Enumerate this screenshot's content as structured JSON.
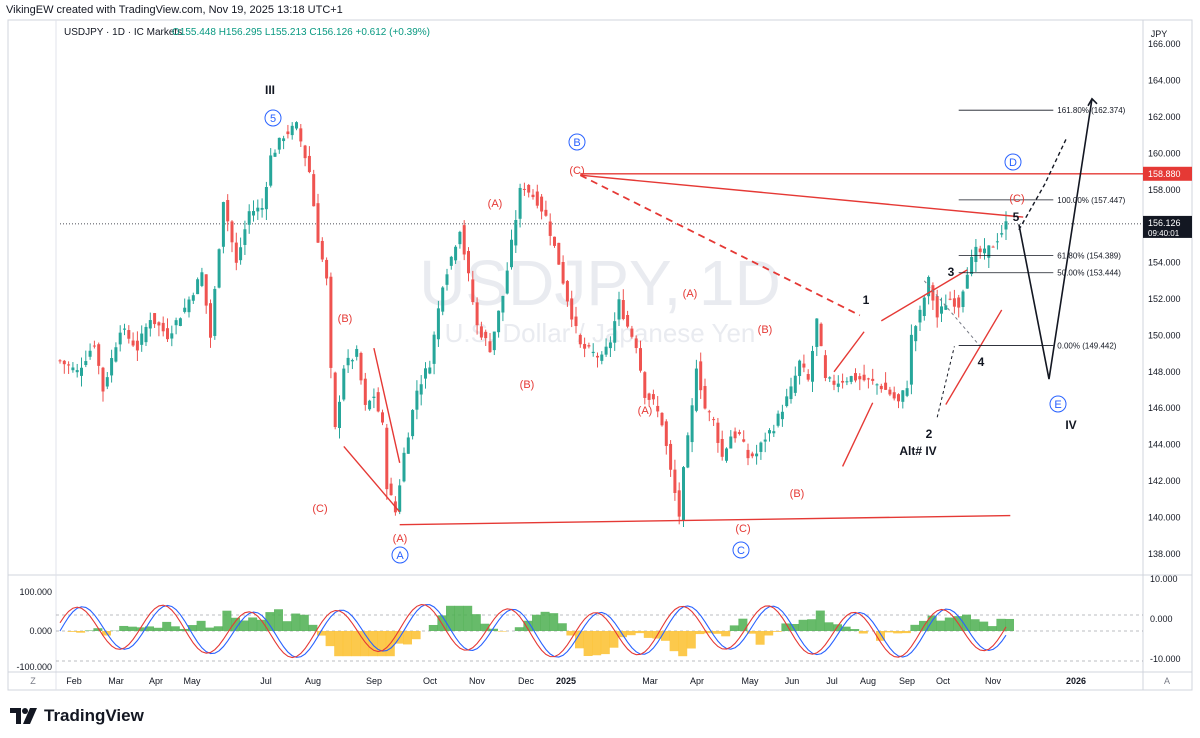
{
  "header": {
    "author_line": "VikingEW created with TradingView.com, Nov 19, 2025 13:18 UTC+1"
  },
  "brand": {
    "name": "TradingView"
  },
  "chart_data": {
    "type": "candlestick",
    "symbol_line": "USDJPY · 1D · IC Markets",
    "ohlc": {
      "O": "155.448",
      "H": "156.295",
      "L": "155.213",
      "C": "156.126",
      "change": "+0.612 (+0.39%)"
    },
    "watermark": {
      "symbol": "USDJPY, 1D",
      "name": "U.S. Dollar / Japanese Yen"
    },
    "currency": "JPY",
    "price_axis": {
      "min": 137,
      "max": 167,
      "ticks": [
        "166.000",
        "164.000",
        "162.000",
        "160.000",
        "158.000",
        "156.000",
        "154.000",
        "152.000",
        "150.000",
        "148.000",
        "146.000",
        "144.000",
        "142.000",
        "140.000",
        "138.000"
      ]
    },
    "time_axis": [
      "Feb",
      "Mar",
      "Apr",
      "May",
      "Jul",
      "Aug",
      "Sep",
      "Oct",
      "Nov",
      "Dec",
      "2025",
      "Mar",
      "Apr",
      "May",
      "Jun",
      "Jul",
      "Aug",
      "Sep",
      "Oct",
      "Nov",
      "2026"
    ],
    "last_price": {
      "value": 156.126,
      "label": "156.126",
      "timer": "09:40:01"
    },
    "level_marker": {
      "value": 158.88,
      "label": "158.880"
    },
    "price_path": [
      [
        0,
        148.6
      ],
      [
        4,
        148.0
      ],
      [
        8,
        149.6
      ],
      [
        10,
        147.0
      ],
      [
        14,
        150.4
      ],
      [
        18,
        149.3
      ],
      [
        21,
        151.0
      ],
      [
        25,
        150.0
      ],
      [
        29,
        151.5
      ],
      [
        33,
        153.4
      ],
      [
        35,
        149.9
      ],
      [
        38,
        157.5
      ],
      [
        41,
        153.9
      ],
      [
        44,
        156.8
      ],
      [
        47,
        157.0
      ],
      [
        49,
        159.8
      ],
      [
        52,
        161.0
      ],
      [
        55,
        161.5
      ],
      [
        58,
        159.0
      ],
      [
        60,
        155.3
      ],
      [
        62,
        153.0
      ],
      [
        63,
        148.0
      ],
      [
        64,
        144.8
      ],
      [
        66,
        148.3
      ],
      [
        69,
        149.0
      ],
      [
        71,
        146.0
      ],
      [
        73,
        146.7
      ],
      [
        75,
        145.0
      ],
      [
        76,
        141.8
      ],
      [
        78,
        140.3
      ],
      [
        80,
        143.5
      ],
      [
        83,
        147.0
      ],
      [
        86,
        148.5
      ],
      [
        89,
        152.9
      ],
      [
        91,
        154.3
      ],
      [
        93,
        155.9
      ],
      [
        95,
        153.2
      ],
      [
        97,
        150.5
      ],
      [
        100,
        149.3
      ],
      [
        103,
        152.2
      ],
      [
        105,
        155.0
      ],
      [
        107,
        157.9
      ],
      [
        108,
        158.2
      ],
      [
        111,
        157.4
      ],
      [
        113,
        156.5
      ],
      [
        116,
        154.0
      ],
      [
        118,
        152.0
      ],
      [
        121,
        149.4
      ],
      [
        124,
        149.0
      ],
      [
        126,
        148.7
      ],
      [
        128,
        149.7
      ],
      [
        130,
        151.8
      ],
      [
        132,
        150.5
      ],
      [
        134,
        149.5
      ],
      [
        136,
        146.8
      ],
      [
        138,
        146.3
      ],
      [
        140,
        145.2
      ],
      [
        142,
        142.5
      ],
      [
        144,
        140.1
      ],
      [
        145,
        142.5
      ],
      [
        147,
        146.0
      ],
      [
        148,
        148.4
      ],
      [
        150,
        146.0
      ],
      [
        152,
        145.3
      ],
      [
        154,
        143.3
      ],
      [
        156,
        144.5
      ],
      [
        158,
        144.5
      ],
      [
        160,
        143.3
      ],
      [
        162,
        143.5
      ],
      [
        164,
        144.4
      ],
      [
        166,
        145.0
      ],
      [
        168,
        146.0
      ],
      [
        170,
        147.0
      ],
      [
        172,
        148.5
      ],
      [
        174,
        147.5
      ],
      [
        176,
        150.8
      ],
      [
        178,
        147.5
      ],
      [
        180,
        147.4
      ],
      [
        184,
        147.7
      ],
      [
        188,
        147.5
      ],
      [
        191,
        147.2
      ],
      [
        193,
        146.8
      ],
      [
        195,
        146.3
      ],
      [
        197,
        147.3
      ],
      [
        198,
        149.9
      ],
      [
        200,
        151.2
      ],
      [
        202,
        153.0
      ],
      [
        204,
        151.0
      ],
      [
        206,
        151.8
      ],
      [
        207,
        152.0
      ],
      [
        209,
        151.7
      ],
      [
        211,
        153.6
      ],
      [
        213,
        154.6
      ],
      [
        215,
        154.5
      ],
      [
        217,
        155.0
      ],
      [
        219,
        155.7
      ],
      [
        220,
        156.1
      ]
    ],
    "fib_levels": [
      {
        "label": "161.80% (162.374)",
        "value": 162.374
      },
      {
        "label": "100.00% (157.447)",
        "value": 157.447
      },
      {
        "label": "61.80% (154.389)",
        "value": 154.389
      },
      {
        "label": "50.00% (153.444)",
        "value": 153.444
      },
      {
        "label": "0.00% (149.442)",
        "value": 149.442
      }
    ],
    "wave_labels": [
      {
        "text": "III",
        "color": "#131722"
      },
      {
        "text": "5",
        "color": "#2962ff",
        "circled": true
      },
      {
        "text": "B",
        "color": "#2962ff",
        "circled": true
      },
      {
        "text": "(C)",
        "color": "#e53935"
      },
      {
        "text": "(A)",
        "color": "#e53935"
      },
      {
        "text": "(B)",
        "color": "#e53935"
      },
      {
        "text": "(B)",
        "color": "#e53935"
      },
      {
        "text": "(A)",
        "color": "#e53935"
      },
      {
        "text": "(B)",
        "color": "#e53935"
      },
      {
        "text": "(A)",
        "color": "#e53935"
      },
      {
        "text": "(C)",
        "color": "#e53935"
      },
      {
        "text": "A",
        "color": "#2962ff",
        "circled": true
      },
      {
        "text": "(A)",
        "color": "#e53935"
      },
      {
        "text": "(B)",
        "color": "#e53935"
      },
      {
        "text": "(C)",
        "color": "#e53935"
      },
      {
        "text": "C",
        "color": "#2962ff",
        "circled": true
      },
      {
        "text": "1",
        "color": "#131722"
      },
      {
        "text": "2",
        "color": "#131722"
      },
      {
        "text": "Alt# IV",
        "color": "#131722"
      },
      {
        "text": "3",
        "color": "#131722"
      },
      {
        "text": "4",
        "color": "#131722"
      },
      {
        "text": "5",
        "color": "#131722"
      },
      {
        "text": "(C)",
        "color": "#e53935"
      },
      {
        "text": "D",
        "color": "#2962ff",
        "circled": true
      },
      {
        "text": "E",
        "color": "#2962ff",
        "circled": true
      },
      {
        "text": "IV",
        "color": "#131722"
      }
    ],
    "oscillator": {
      "left_ticks": [
        "100.000",
        "0.000",
        "-100.000"
      ],
      "right_ticks": [
        "10.000",
        "0.000",
        "-10.000"
      ],
      "series": [
        {
          "color": "#2962ff"
        },
        {
          "color": "#e53935"
        }
      ]
    },
    "axis_corner": {
      "left": "Z",
      "right": "A"
    },
    "colors": {
      "trendline": "#e53935",
      "up": "#26a69a",
      "down": "#ef5350",
      "wave_blue": "#2962ff",
      "osc_pos": "#4caf50",
      "osc_neg": "#fbc02d"
    }
  }
}
